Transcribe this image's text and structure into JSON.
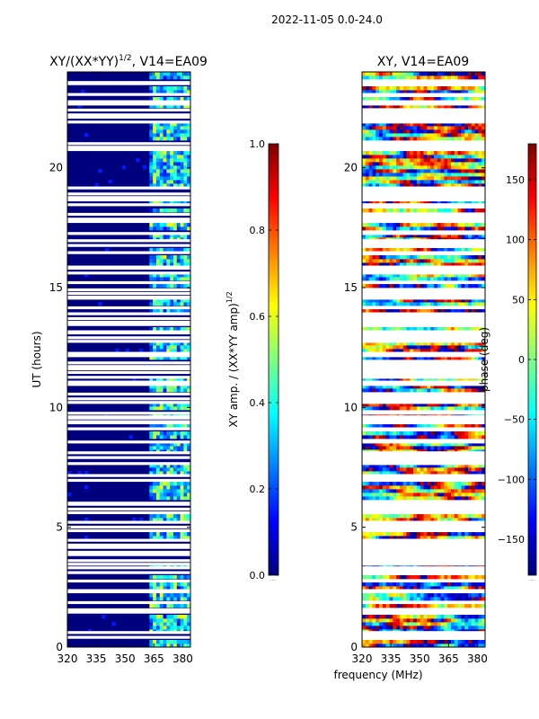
{
  "suptitle": "2022-11-05 0.0-24.0",
  "colors": {
    "jet": [
      "#00007f",
      "#0000ff",
      "#007fff",
      "#00ffff",
      "#7fff7f",
      "#ffff00",
      "#ff7f00",
      "#ff0000",
      "#7f0000"
    ],
    "frame": "#000000",
    "gap": "#ffffff"
  },
  "chart_data": [
    {
      "type": "heatmap",
      "title": "XY/(XX*YY)^{1/2}, V14=EA09",
      "title_main": "XY/(XX*YY)",
      "title_sup": "1/2",
      "title_tail": ", V14=EA09",
      "xlabel": "",
      "ylabel": "UT (hours)",
      "x_ticks": [
        320,
        335,
        350,
        365,
        380
      ],
      "x_tick_labels": [
        "320",
        "335",
        "350",
        "365",
        "380"
      ],
      "y_ticks": [
        0,
        5,
        10,
        15,
        20
      ],
      "y_tick_labels": [
        "0",
        "5",
        "10",
        "15",
        "20"
      ],
      "xlim": [
        320,
        384
      ],
      "ylim": [
        0,
        24
      ],
      "colorbar": {
        "label_main": "XY amp. / (XX*YY amp)",
        "label_sup": "1/2",
        "ticks": [
          "0.0",
          "0.2",
          "0.4",
          "0.6",
          "0.8",
          "1.0"
        ],
        "tick_values": [
          0.0,
          0.2,
          0.4,
          0.6,
          0.8,
          1.0
        ],
        "range": [
          0.0,
          1.0
        ]
      },
      "description": "amplitude near 0 below ~362 MHz; elevated 0.3-0.6 at 362-382 MHz with horizontal data gaps"
    },
    {
      "type": "heatmap",
      "title": "XY, V14=EA09",
      "xlabel": "frequency (MHz)",
      "ylabel": "",
      "x_ticks": [
        320,
        335,
        350,
        365,
        380
      ],
      "x_tick_labels": [
        "320",
        "335",
        "350",
        "365",
        "380"
      ],
      "y_ticks": [
        0,
        5,
        10,
        15,
        20
      ],
      "y_tick_labels": [
        "0",
        "5",
        "10",
        "15",
        "20"
      ],
      "xlim": [
        320,
        384
      ],
      "ylim": [
        0,
        24
      ],
      "colorbar": {
        "label": "phase (deg)",
        "ticks": [
          "−150",
          "−100",
          "−50",
          "0",
          "50",
          "100",
          "150"
        ],
        "tick_values": [
          -150,
          -100,
          -50,
          0,
          50,
          100,
          150
        ],
        "range": [
          -180,
          180
        ]
      },
      "description": "phase spans the full -180..180 degree range in a noisy pattern with horizontal gaps"
    }
  ],
  "gap_rows_hours": [
    0.4,
    0.6,
    1.45,
    1.55,
    1.85,
    2.3,
    2.35,
    2.75,
    3.1,
    3.3,
    3.45,
    3.6,
    3.85,
    3.95,
    4.15,
    4.25,
    4.45,
    4.85,
    5.0,
    5.2,
    5.6,
    5.75,
    5.95,
    6.0,
    6.95,
    7.15,
    7.65,
    7.9,
    8.1,
    8.55,
    9.1,
    9.35,
    9.4,
    9.55,
    9.6,
    9.75,
    10.2,
    10.35,
    10.55,
    10.95,
    11.05,
    11.25,
    11.45,
    11.6,
    11.7,
    11.85,
    12.15,
    12.25,
    12.75,
    12.9,
    13.1,
    13.15,
    13.45,
    13.55,
    13.7,
    13.9,
    14.15,
    14.55,
    14.6,
    14.75,
    14.9,
    15.2,
    15.6,
    15.8,
    15.85,
    16.45,
    16.75,
    16.95,
    17.25,
    17.75,
    17.85,
    18.05,
    18.45,
    18.65,
    18.75,
    18.9,
    19.15,
    20.75,
    20.85,
    21.0,
    21.9,
    22.1,
    22.2,
    22.4,
    22.65,
    22.75,
    23.05,
    23.5,
    23.55
  ]
}
